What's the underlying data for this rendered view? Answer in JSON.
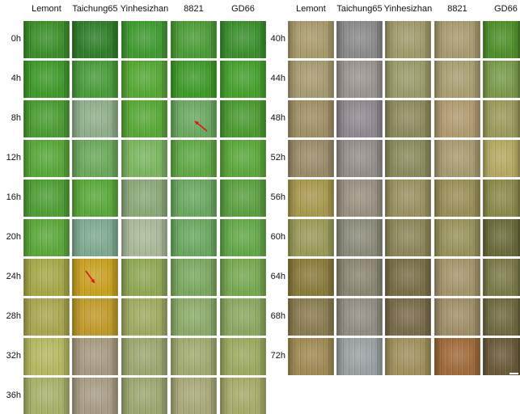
{
  "figure": {
    "column_headers": [
      "Lemont",
      "Taichung65",
      "Yinhesizhan",
      "8821",
      "GD66"
    ],
    "left_panel_rows": [
      "0h",
      "4h",
      "8h",
      "12h",
      "16h",
      "20h",
      "24h",
      "28h",
      "32h",
      "36h"
    ],
    "right_panel_rows": [
      "40h",
      "44h",
      "48h",
      "52h",
      "56h",
      "60h",
      "64h",
      "68h",
      "72h"
    ],
    "colors": {
      "healthy_green": "#3f9a2a",
      "light_green": "#7cc04a",
      "yellow_green": "#b4b448",
      "tan": "#a99a70",
      "brown": "#8a6a3c",
      "pale_gray": "#9aa290",
      "arrow_red": "#e01010"
    }
  }
}
